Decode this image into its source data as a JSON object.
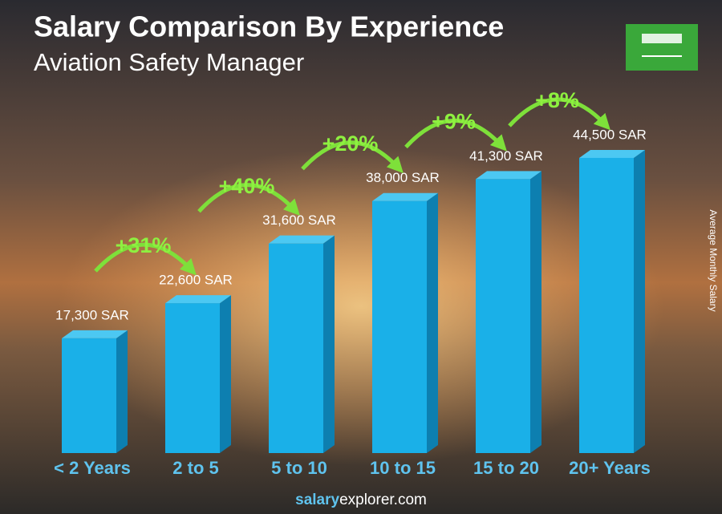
{
  "chart_data": {
    "type": "bar3d",
    "title": "Salary Comparison By Experience",
    "subtitle": "Aviation Safety Manager",
    "y_axis_label": "Average Monthly Salary",
    "categories": [
      "< 2 Years",
      "2 to 5",
      "5 to 10",
      "10 to 15",
      "15 to 20",
      "20+ Years"
    ],
    "values": [
      17300,
      22600,
      31600,
      38000,
      41300,
      44500
    ],
    "value_labels": [
      "17,300 SAR",
      "22,600 SAR",
      "31,600 SAR",
      "38,000 SAR",
      "41,300 SAR",
      "44,500 SAR"
    ],
    "increase_labels": [
      "+31%",
      "+40%",
      "+20%",
      "+9%",
      "+8%"
    ],
    "color": "#1ab0e8",
    "ylim": [
      0,
      48000
    ],
    "footer": [
      "salary",
      "explorer.com"
    ]
  }
}
